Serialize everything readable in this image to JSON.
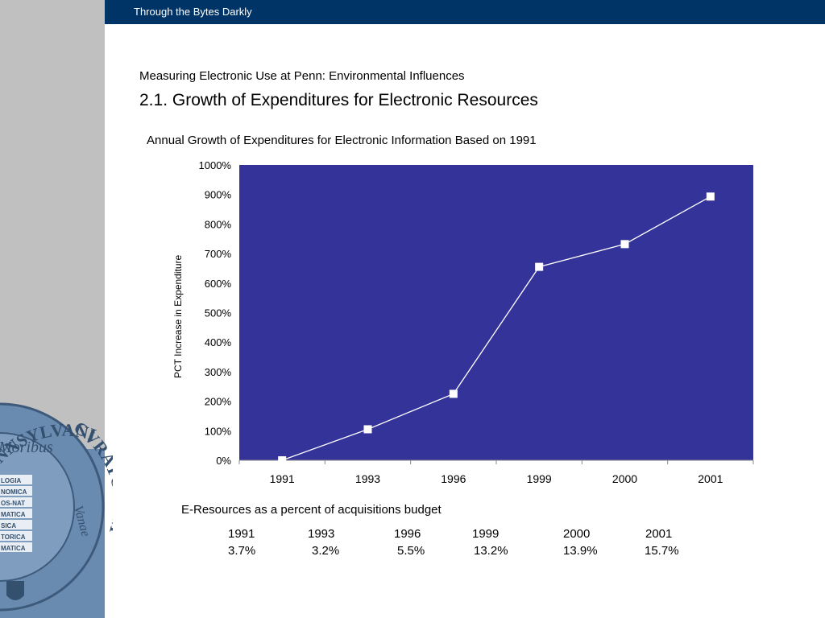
{
  "header": {
    "title": "Through the Bytes Darkly"
  },
  "content": {
    "subtitle": "Measuring Electronic Use at Penn: Environmental Influences",
    "title": "2.1. Growth of Expenditures for Electronic Resources"
  },
  "chart_data": {
    "type": "line",
    "title": "Annual Growth of Expenditures for Electronic Information Based on 1991",
    "xlabel": "",
    "ylabel": "PCT Increase in Expenditure",
    "categories": [
      "1991",
      "1993",
      "1996",
      "1999",
      "2000",
      "2001"
    ],
    "series": [
      {
        "values": [
          0,
          105,
          225,
          655,
          732,
          893
        ]
      }
    ],
    "ylim": [
      0,
      1000
    ],
    "yticks": [
      "0%",
      "100%",
      "200%",
      "300%",
      "400%",
      "500%",
      "600%",
      "700%",
      "800%",
      "900%",
      "1000%"
    ],
    "grid": false,
    "plot_background": "#333399",
    "line_color": "#ffffff",
    "marker": "square"
  },
  "table": {
    "title": "E-Resources as a percent of acquisitions budget",
    "years": [
      "1991",
      "1993",
      "1996",
      "1999",
      "2000",
      "2001"
    ],
    "values": [
      "3.7%",
      "3.2%",
      "5.5%",
      "13.2%",
      "13.9%",
      "15.7%"
    ]
  },
  "seal": {
    "text_top": "PENNSYLVANIENSIS",
    "text_side": "CVRATORVM",
    "motto": "Moribus",
    "motto2": "Vanae",
    "banners": [
      "LOGIA",
      "NOMICA",
      "OS-NAT",
      "MATICA",
      "SICA",
      "TORICA",
      "MATICA"
    ]
  },
  "colors": {
    "header_bar": "#003366",
    "left_bar": "#c0c0c0",
    "left_bar_bottom": "#6a8bb0",
    "plot_background": "#333399"
  }
}
